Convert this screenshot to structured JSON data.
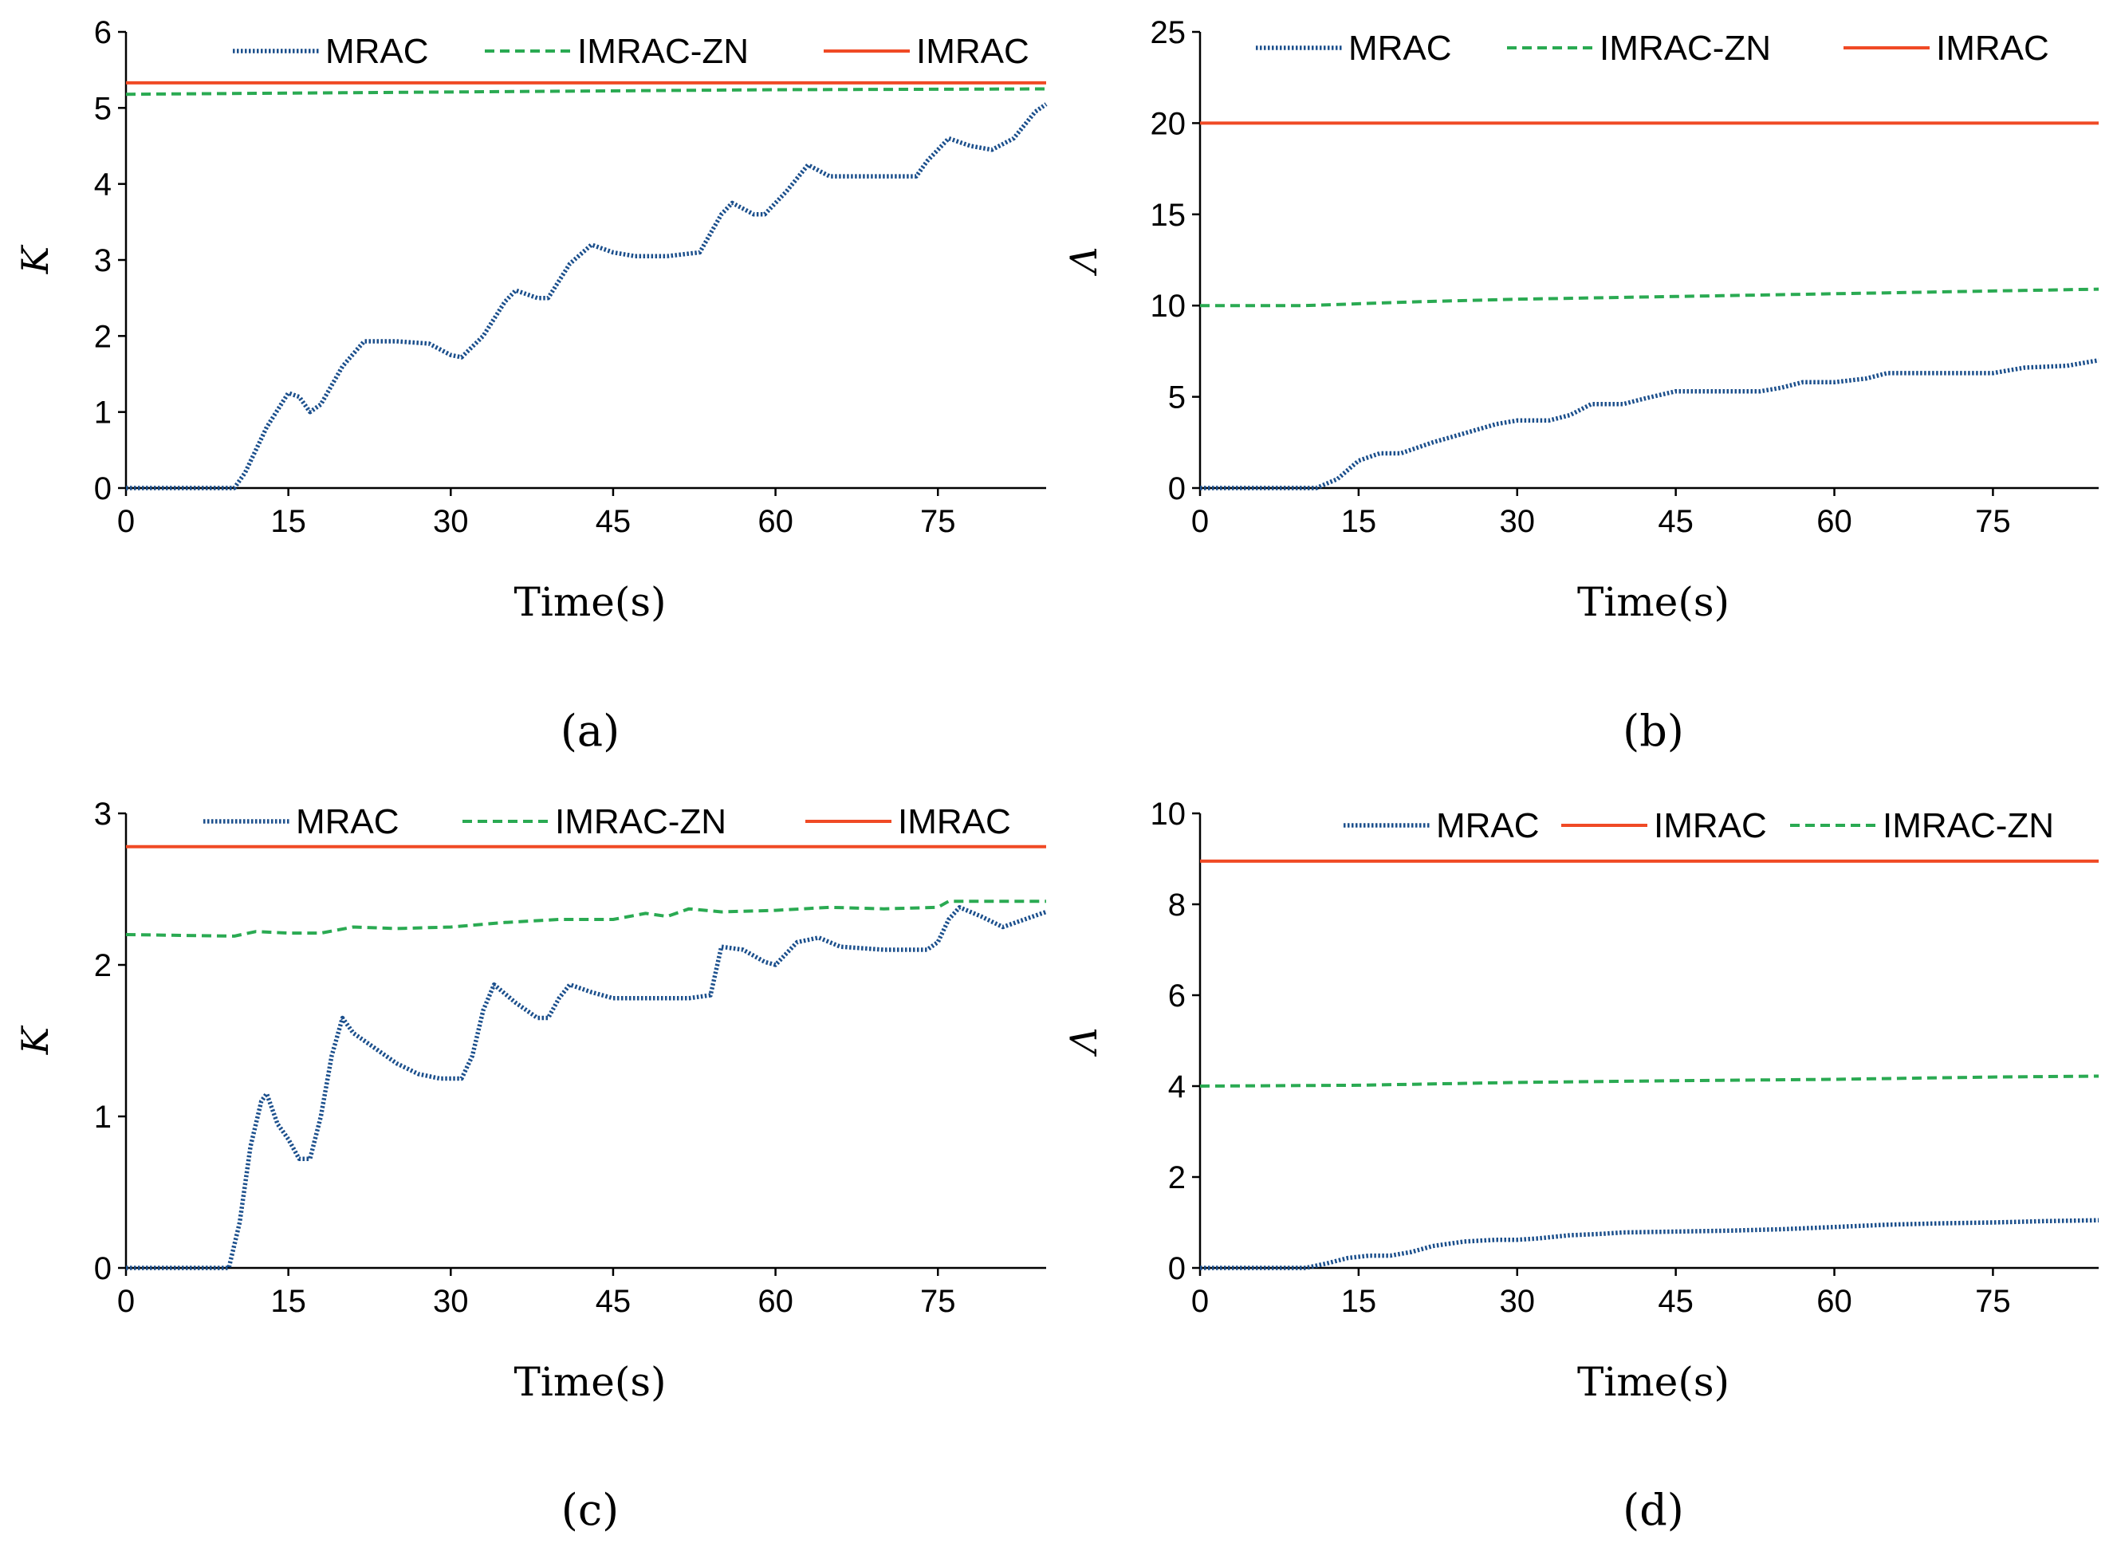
{
  "chart_data": [
    {
      "panel_label": "(a)",
      "type": "line",
      "title": "",
      "xlabel": "Time(s)",
      "ylabel": "K",
      "xlim": [
        0,
        85
      ],
      "ylim": [
        0,
        6
      ],
      "xticks": [
        0,
        15,
        30,
        45,
        60,
        75
      ],
      "yticks": [
        0,
        1,
        2,
        3,
        4,
        5,
        6
      ],
      "grid": false,
      "legend_order": [
        "MRAC",
        "IMRAC-ZN",
        "IMRAC"
      ],
      "series": [
        {
          "name": "MRAC",
          "color": "#1b4f8c",
          "style": "dotted",
          "x": [
            0,
            10,
            11,
            13,
            15,
            16,
            17,
            18,
            20,
            22,
            25,
            28,
            30,
            31,
            33,
            35,
            36,
            38,
            39,
            41,
            43,
            45,
            47,
            50,
            53,
            55,
            56,
            58,
            59,
            61,
            63,
            65,
            68,
            70,
            73,
            74,
            76,
            78,
            80,
            82,
            84,
            85
          ],
          "y": [
            0,
            0,
            0.2,
            0.8,
            1.25,
            1.2,
            1.0,
            1.1,
            1.6,
            1.93,
            1.93,
            1.9,
            1.75,
            1.72,
            2.0,
            2.45,
            2.6,
            2.5,
            2.5,
            2.95,
            3.2,
            3.1,
            3.05,
            3.05,
            3.1,
            3.6,
            3.75,
            3.6,
            3.6,
            3.9,
            4.25,
            4.1,
            4.1,
            4.1,
            4.1,
            4.3,
            4.6,
            4.5,
            4.45,
            4.6,
            4.95,
            5.05
          ]
        },
        {
          "name": "IMRAC-ZN",
          "color": "#2aaa52",
          "style": "dashed",
          "x": [
            0,
            20,
            40,
            60,
            85
          ],
          "y": [
            5.18,
            5.2,
            5.22,
            5.24,
            5.25
          ]
        },
        {
          "name": "IMRAC",
          "color": "#f04a25",
          "style": "solid",
          "x": [
            0,
            85
          ],
          "y": [
            5.33,
            5.33
          ]
        }
      ]
    },
    {
      "panel_label": "(b)",
      "type": "line",
      "title": "",
      "xlabel": "Time(s)",
      "ylabel": "Λ",
      "xlim": [
        0,
        85
      ],
      "ylim": [
        0,
        25
      ],
      "xticks": [
        0,
        15,
        30,
        45,
        60,
        75
      ],
      "yticks": [
        0,
        5,
        10,
        15,
        20,
        25
      ],
      "grid": false,
      "legend_order": [
        "MRAC",
        "IMRAC-ZN",
        "IMRAC"
      ],
      "series": [
        {
          "name": "MRAC",
          "color": "#1b4f8c",
          "style": "dotted",
          "x": [
            0,
            11,
            13,
            15,
            17,
            19,
            22,
            25,
            28,
            30,
            33,
            35,
            37,
            40,
            42,
            45,
            50,
            53,
            55,
            57,
            60,
            63,
            65,
            70,
            75,
            78,
            82,
            85
          ],
          "y": [
            0,
            0,
            0.5,
            1.5,
            1.9,
            1.9,
            2.5,
            3.0,
            3.5,
            3.7,
            3.7,
            4.0,
            4.6,
            4.6,
            4.9,
            5.3,
            5.3,
            5.3,
            5.5,
            5.8,
            5.8,
            6.0,
            6.3,
            6.3,
            6.3,
            6.6,
            6.7,
            7.0
          ]
        },
        {
          "name": "IMRAC-ZN",
          "color": "#2aaa52",
          "style": "dashed",
          "x": [
            0,
            10,
            15,
            20,
            30,
            40,
            45,
            55,
            65,
            75,
            85
          ],
          "y": [
            10.0,
            10.0,
            10.1,
            10.2,
            10.35,
            10.45,
            10.5,
            10.6,
            10.7,
            10.8,
            10.9
          ]
        },
        {
          "name": "IMRAC",
          "color": "#f04a25",
          "style": "solid",
          "x": [
            0,
            85
          ],
          "y": [
            20.0,
            20.0
          ]
        }
      ]
    },
    {
      "panel_label": "(c)",
      "type": "line",
      "title": "",
      "xlabel": "Time(s)",
      "ylabel": "K",
      "xlim": [
        0,
        85
      ],
      "ylim": [
        0,
        3
      ],
      "xticks": [
        0,
        15,
        30,
        45,
        60,
        75
      ],
      "yticks": [
        0,
        1,
        2,
        3
      ],
      "grid": false,
      "legend_order": [
        "MRAC",
        "IMRAC-ZN",
        "IMRAC"
      ],
      "series": [
        {
          "name": "MRAC",
          "color": "#1b4f8c",
          "style": "dotted",
          "x": [
            0,
            9.5,
            10.5,
            11.5,
            12.5,
            13.0,
            14.0,
            15.0,
            16.0,
            17.0,
            18.0,
            19.0,
            20.0,
            21.0,
            23.0,
            25.0,
            27.0,
            29.0,
            31.0,
            32.0,
            33.0,
            34.0,
            36.0,
            38.0,
            39.0,
            40.0,
            41.0,
            43.0,
            45.0,
            48.0,
            50.0,
            52.0,
            54.0,
            55.0,
            57.0,
            59.0,
            60.0,
            62.0,
            64.0,
            66.0,
            70.0,
            74.0,
            75.0,
            76.0,
            77.0,
            79.0,
            81.0,
            83.0,
            85.0
          ],
          "y": [
            0,
            0,
            0.3,
            0.8,
            1.1,
            1.15,
            0.95,
            0.85,
            0.72,
            0.72,
            1.0,
            1.4,
            1.65,
            1.55,
            1.45,
            1.35,
            1.28,
            1.25,
            1.25,
            1.4,
            1.7,
            1.87,
            1.75,
            1.65,
            1.65,
            1.78,
            1.87,
            1.82,
            1.78,
            1.78,
            1.78,
            1.78,
            1.8,
            2.12,
            2.1,
            2.02,
            2.0,
            2.15,
            2.18,
            2.12,
            2.1,
            2.1,
            2.15,
            2.3,
            2.38,
            2.32,
            2.25,
            2.3,
            2.35
          ]
        },
        {
          "name": "IMRAC-ZN",
          "color": "#2aaa52",
          "style": "dashed",
          "x": [
            0,
            10,
            12,
            15,
            18,
            21,
            25,
            30,
            35,
            40,
            45,
            48,
            50,
            52,
            55,
            60,
            65,
            70,
            75,
            76,
            80,
            85
          ],
          "y": [
            2.2,
            2.19,
            2.22,
            2.21,
            2.21,
            2.25,
            2.24,
            2.25,
            2.28,
            2.3,
            2.3,
            2.34,
            2.32,
            2.37,
            2.35,
            2.36,
            2.38,
            2.37,
            2.38,
            2.42,
            2.42,
            2.42
          ]
        },
        {
          "name": "IMRAC",
          "color": "#f04a25",
          "style": "solid",
          "x": [
            0,
            85
          ],
          "y": [
            2.78,
            2.78
          ]
        }
      ]
    },
    {
      "panel_label": "(d)",
      "type": "line",
      "title": "",
      "xlabel": "Time(s)",
      "ylabel": "Λ",
      "xlim": [
        0,
        85
      ],
      "ylim": [
        0,
        10
      ],
      "xticks": [
        0,
        15,
        30,
        45,
        60,
        75
      ],
      "yticks": [
        0,
        2,
        4,
        6,
        8,
        10
      ],
      "grid": false,
      "legend_order": [
        "MRAC",
        "IMRAC",
        "IMRAC-ZN"
      ],
      "series": [
        {
          "name": "MRAC",
          "color": "#1b4f8c",
          "style": "dotted",
          "x": [
            0,
            10,
            12,
            14,
            16,
            18,
            20,
            22,
            25,
            28,
            30,
            32,
            35,
            38,
            40,
            45,
            50,
            55,
            60,
            65,
            70,
            75,
            80,
            85
          ],
          "y": [
            0,
            0,
            0.1,
            0.22,
            0.27,
            0.27,
            0.35,
            0.48,
            0.58,
            0.62,
            0.62,
            0.65,
            0.72,
            0.75,
            0.78,
            0.8,
            0.82,
            0.85,
            0.9,
            0.95,
            0.98,
            1.0,
            1.03,
            1.05
          ]
        },
        {
          "name": "IMRAC",
          "color": "#f04a25",
          "style": "solid",
          "x": [
            0,
            85
          ],
          "y": [
            8.95,
            8.95
          ]
        },
        {
          "name": "IMRAC-ZN",
          "color": "#2aaa52",
          "style": "dashed",
          "x": [
            0,
            15,
            30,
            45,
            60,
            75,
            85
          ],
          "y": [
            4.0,
            4.02,
            4.08,
            4.12,
            4.15,
            4.2,
            4.22
          ]
        }
      ]
    }
  ]
}
